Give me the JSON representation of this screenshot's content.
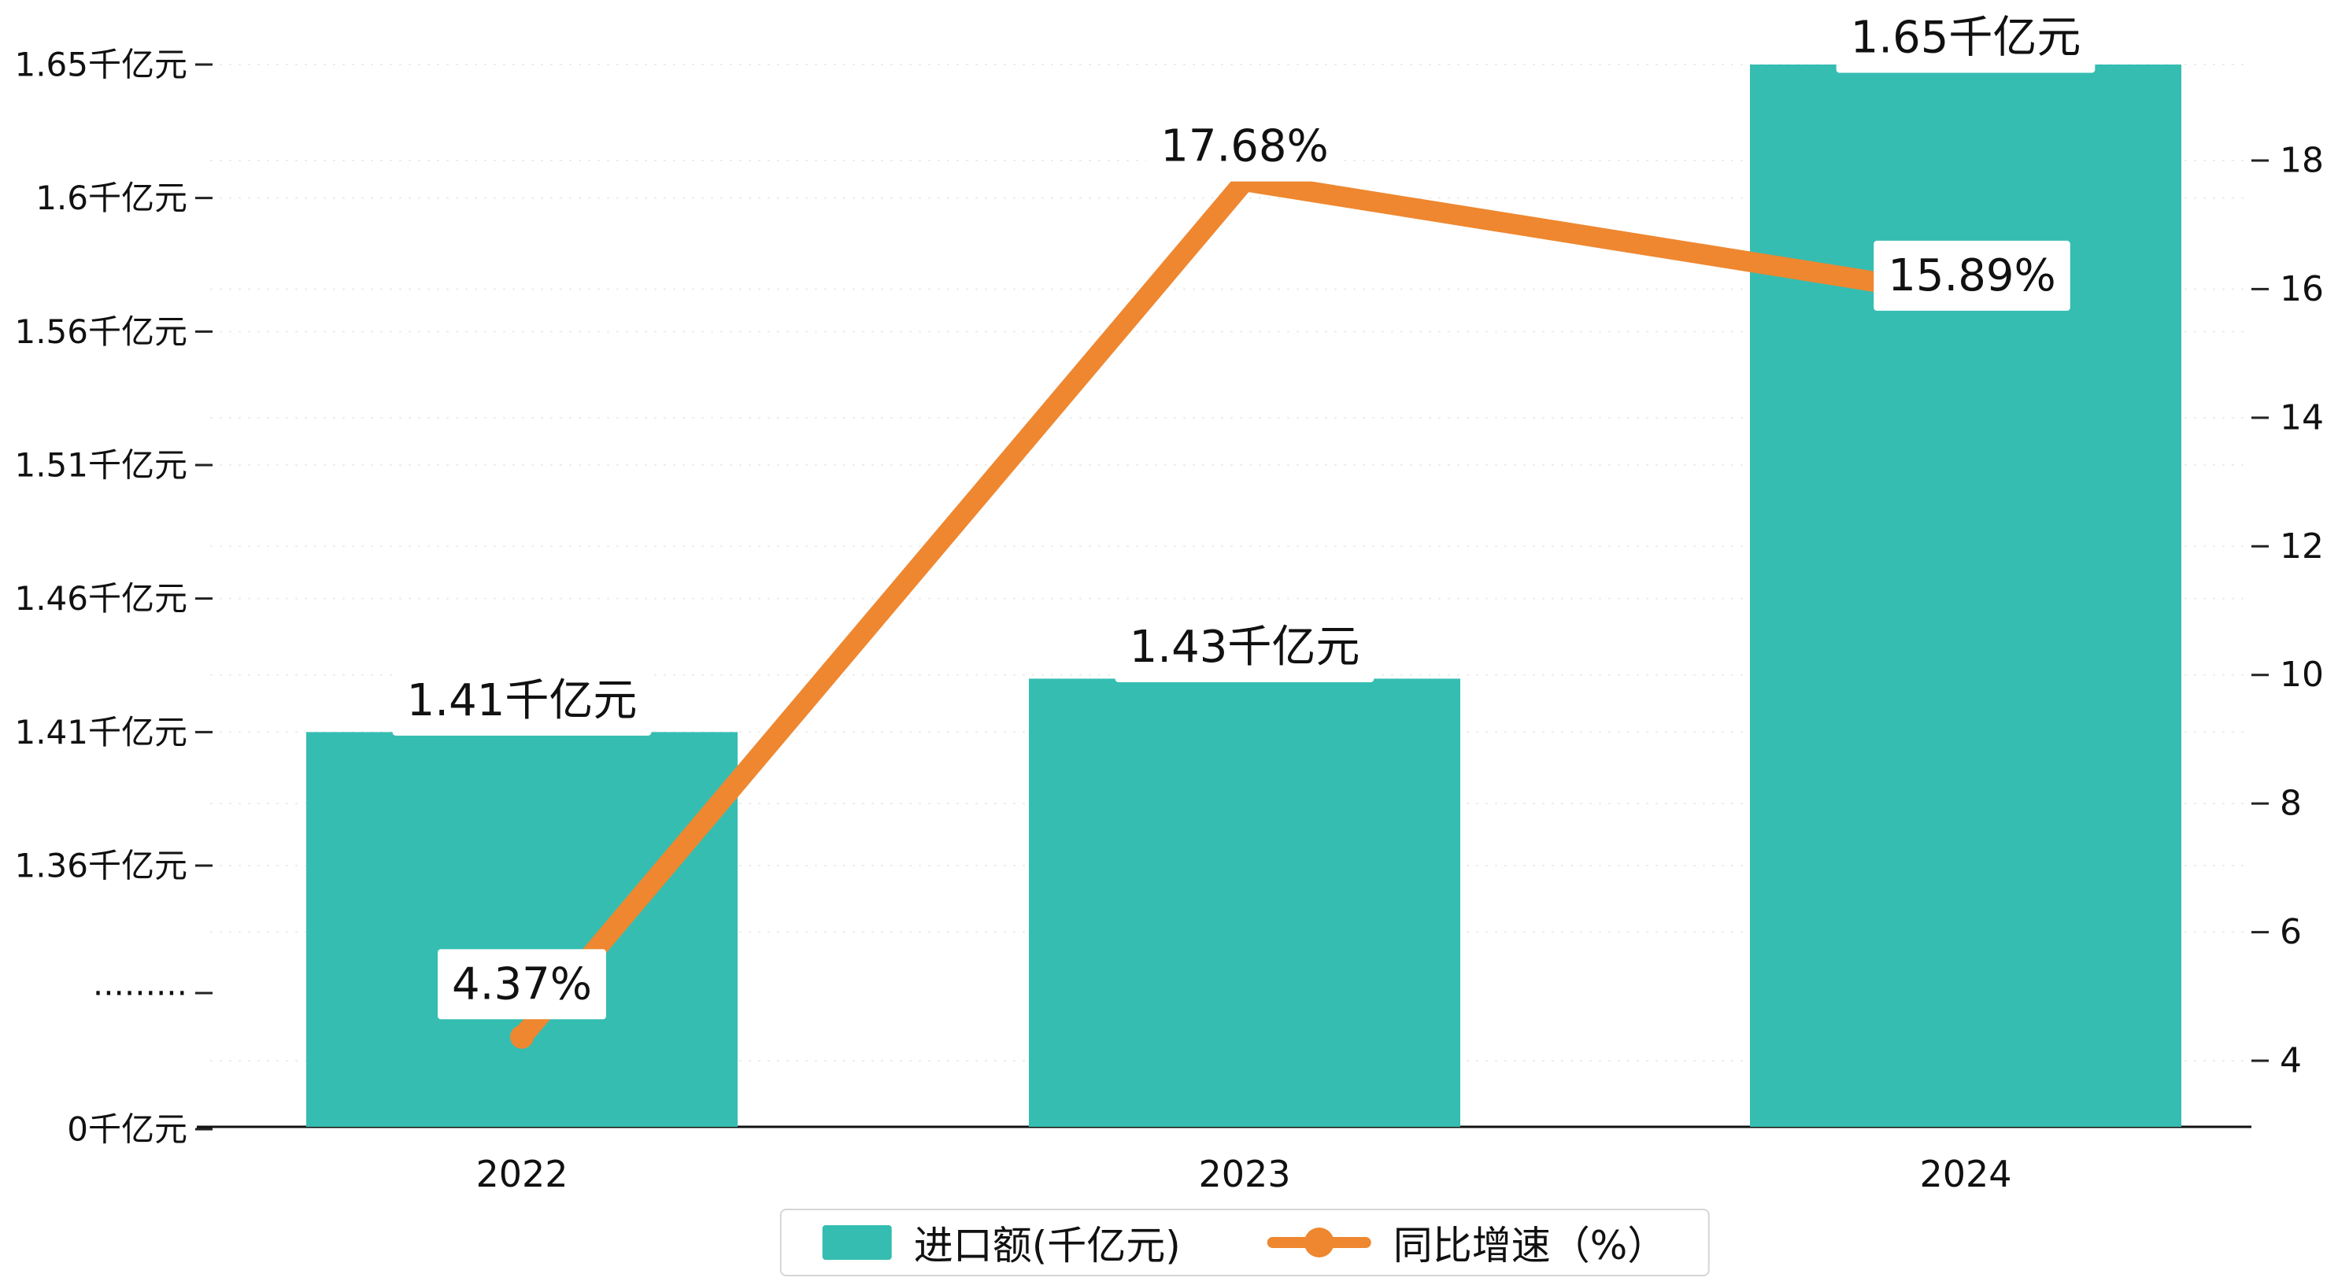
{
  "chart_data": {
    "type": "combo_bar_line",
    "title": "",
    "categories": [
      "2022",
      "2023",
      "2024"
    ],
    "series": [
      {
        "name": "进口额(千亿元)",
        "type": "bar",
        "axis": "left",
        "color": "#35bdb1",
        "values": [
          1.41,
          1.43,
          1.65
        ],
        "data_labels": [
          "1.41千亿元",
          "1.43千亿元",
          "1.65千亿元"
        ]
      },
      {
        "name": "同比增速（%）",
        "type": "line",
        "axis": "right",
        "color": "#ee8730",
        "values": [
          4.37,
          17.68,
          15.89
        ],
        "data_labels": [
          "4.37%",
          "17.68%",
          "15.89%"
        ]
      }
    ],
    "left_axis": {
      "tick_labels": [
        "1.65千亿元",
        "1.6千亿元",
        "1.56千亿元",
        "1.51千亿元",
        "1.46千亿元",
        "1.41千亿元",
        "1.36千亿元",
        "·········",
        "0千亿元"
      ],
      "tick_values": [
        1.65,
        1.6,
        1.56,
        1.51,
        1.46,
        1.41,
        1.36,
        null,
        0
      ],
      "axis_break": true
    },
    "right_axis": {
      "tick_labels": [
        "18",
        "16",
        "14",
        "12",
        "10",
        "8",
        "6",
        "4"
      ],
      "min": 4,
      "max": 18
    },
    "x_axis": {
      "labels": [
        "2022",
        "2023",
        "2024"
      ]
    },
    "legend": {
      "position": "bottom-center",
      "items": [
        {
          "label": "进口额(千亿元)",
          "marker": "bar-swatch",
          "color": "#35bdb1"
        },
        {
          "label": "同比增速（%）",
          "marker": "line-dot",
          "color": "#ee8730"
        }
      ]
    },
    "grid": true,
    "text_color": "#111111",
    "grid_color": "#ededed"
  }
}
